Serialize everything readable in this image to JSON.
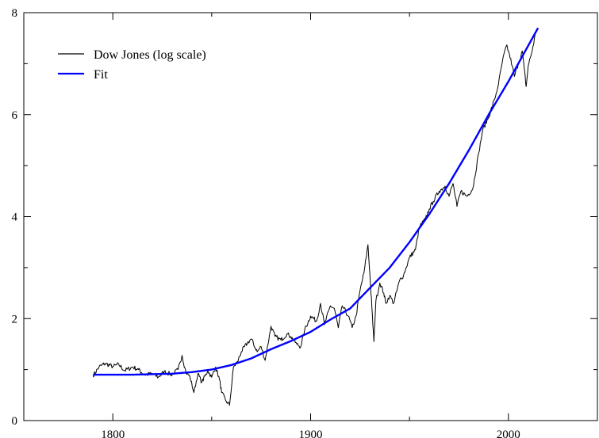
{
  "chart_data": {
    "type": "line",
    "title": "",
    "xlabel": "",
    "ylabel": "",
    "xlim": [
      1755,
      2045
    ],
    "ylim": [
      0,
      8
    ],
    "x_ticks": [
      1800,
      1900,
      2000
    ],
    "y_ticks": [
      0,
      2,
      4,
      6,
      8
    ],
    "grid": false,
    "legend_position": "top-left",
    "series": [
      {
        "name": "Dow Jones (log scale)",
        "color": "#000000",
        "x": [
          1790,
          1793,
          1796,
          1800,
          1803,
          1806,
          1810,
          1813,
          1816,
          1820,
          1823,
          1826,
          1830,
          1833,
          1835,
          1837,
          1839,
          1841,
          1843,
          1845,
          1848,
          1850,
          1852,
          1854,
          1855,
          1857,
          1859,
          1861,
          1863,
          1865,
          1868,
          1870,
          1873,
          1875,
          1877,
          1880,
          1882,
          1885,
          1888,
          1890,
          1893,
          1895,
          1897,
          1900,
          1903,
          1905,
          1907,
          1910,
          1912,
          1914,
          1916,
          1919,
          1921,
          1923,
          1925,
          1927,
          1929,
          1930,
          1931,
          1932,
          1933,
          1935,
          1937,
          1938,
          1940,
          1942,
          1945,
          1947,
          1950,
          1953,
          1955,
          1958,
          1960,
          1962,
          1965,
          1968,
          1970,
          1972,
          1974,
          1976,
          1979,
          1982,
          1985,
          1987,
          1990,
          1993,
          1995,
          1997,
          1999,
          2000,
          2002,
          2003,
          2005,
          2007,
          2008,
          2009,
          2010,
          2012,
          2014
        ],
        "y": [
          0.88,
          1.05,
          1.12,
          1.06,
          1.1,
          0.98,
          1.05,
          1.0,
          0.9,
          0.92,
          0.85,
          0.96,
          0.9,
          1.0,
          1.28,
          0.95,
          0.86,
          0.55,
          0.92,
          0.75,
          0.98,
          0.85,
          1.05,
          0.8,
          0.55,
          0.4,
          0.3,
          1.05,
          1.15,
          1.35,
          1.52,
          1.6,
          1.35,
          1.45,
          1.18,
          1.85,
          1.65,
          1.58,
          1.7,
          1.65,
          1.5,
          1.45,
          1.78,
          2.05,
          1.95,
          2.3,
          1.88,
          2.25,
          2.2,
          1.82,
          2.25,
          2.05,
          1.82,
          2.05,
          2.55,
          2.9,
          3.45,
          2.85,
          2.2,
          1.55,
          2.35,
          2.7,
          2.5,
          2.3,
          2.45,
          2.3,
          2.75,
          2.85,
          3.2,
          3.35,
          3.8,
          3.95,
          4.15,
          4.3,
          4.5,
          4.6,
          4.4,
          4.65,
          4.2,
          4.5,
          4.4,
          4.55,
          5.25,
          5.7,
          5.95,
          6.3,
          6.6,
          7.05,
          7.35,
          7.25,
          6.95,
          6.75,
          7.0,
          7.25,
          6.9,
          6.55,
          6.95,
          7.25,
          7.65
        ]
      },
      {
        "name": "Fit",
        "color": "#0000ff",
        "x": [
          1790,
          1800,
          1810,
          1820,
          1830,
          1840,
          1850,
          1860,
          1870,
          1880,
          1890,
          1900,
          1910,
          1920,
          1930,
          1940,
          1950,
          1960,
          1970,
          1980,
          1990,
          2000,
          2010,
          2015
        ],
        "y": [
          0.9,
          0.9,
          0.9,
          0.91,
          0.92,
          0.95,
          1.0,
          1.09,
          1.22,
          1.4,
          1.56,
          1.74,
          1.98,
          2.2,
          2.6,
          3.0,
          3.5,
          4.05,
          4.65,
          5.3,
          6.0,
          6.65,
          7.35,
          7.7
        ]
      }
    ]
  }
}
